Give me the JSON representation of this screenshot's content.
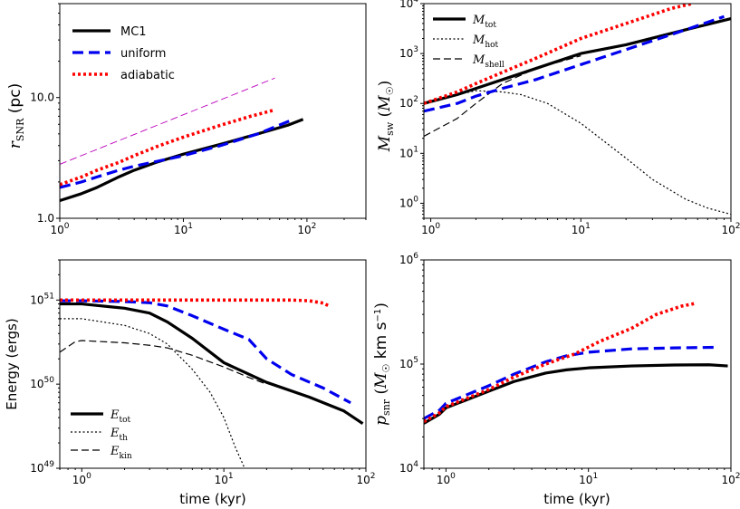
{
  "chart_data": [
    {
      "id": "p1",
      "type": "line",
      "xlabel": "",
      "ylabel": "r_SNR (pc)",
      "xscale": "log",
      "yscale": "log",
      "xlim": [
        1,
        300
      ],
      "ylim": [
        1,
        60
      ],
      "xticks": [
        {
          "v": 1,
          "label": "10^0"
        },
        {
          "v": 10,
          "label": "10^1"
        },
        {
          "v": 100,
          "label": "10^2"
        }
      ],
      "yticks": [
        {
          "v": 1,
          "label": "1.0"
        },
        {
          "v": 10,
          "label": "10.0"
        }
      ],
      "legend_position": "top-left",
      "series": [
        {
          "name": "MC1",
          "color": "#000000",
          "style": "solid",
          "width": 3.2,
          "x": [
            1,
            1.5,
            2,
            3,
            4,
            6,
            10,
            20,
            40,
            70,
            93
          ],
          "y": [
            1.4,
            1.6,
            1.8,
            2.2,
            2.5,
            2.9,
            3.4,
            4.1,
            5.0,
            5.9,
            6.6
          ]
        },
        {
          "name": "uniform",
          "color": "#0000ee",
          "style": "dashed",
          "width": 3.2,
          "x": [
            1,
            1.5,
            2,
            3,
            4,
            6,
            10,
            20,
            40,
            75
          ],
          "y": [
            1.8,
            2.0,
            2.2,
            2.5,
            2.7,
            2.95,
            3.3,
            4.0,
            5.0,
            6.5
          ]
        },
        {
          "name": "adiabatic",
          "color": "#ff0000",
          "style": "dotted",
          "width": 3.6,
          "x": [
            1,
            1.5,
            2,
            3,
            4,
            6,
            10,
            20,
            35,
            55
          ],
          "y": [
            1.9,
            2.2,
            2.5,
            2.9,
            3.3,
            3.9,
            4.7,
            5.9,
            7.0,
            7.9
          ]
        },
        {
          "name": "",
          "color": "#bb00bb",
          "style": "dashed-thin",
          "width": 0.9,
          "x": [
            1,
            55
          ],
          "y": [
            2.8,
            14.5
          ]
        }
      ]
    },
    {
      "id": "p2",
      "type": "line",
      "xlabel": "",
      "ylabel": "M_sw (M☉)",
      "xscale": "log",
      "yscale": "log",
      "xlim": [
        0.9,
        100
      ],
      "ylim": [
        0.5,
        10000
      ],
      "xticks": [
        {
          "v": 1,
          "label": "10^0"
        },
        {
          "v": 10,
          "label": "10^1"
        },
        {
          "v": 100,
          "label": "10^2"
        }
      ],
      "yticks": [
        {
          "v": 1,
          "label": "10^0"
        },
        {
          "v": 10,
          "label": "10^1"
        },
        {
          "v": 100,
          "label": "10^2"
        },
        {
          "v": 1000,
          "label": "10^3"
        },
        {
          "v": 10000,
          "label": "10^4"
        }
      ],
      "legend_position": "top-left",
      "legend": [
        {
          "label": "M",
          "sub": "tot",
          "style": "solid"
        },
        {
          "label": "M",
          "sub": "hot",
          "style": "dotted"
        },
        {
          "label": "M",
          "sub": "shell",
          "style": "dashed"
        }
      ],
      "series": [
        {
          "name": "MC1 tot",
          "color": "#000000",
          "style": "solid",
          "width": 3.2,
          "x": [
            0.9,
            1.5,
            2,
            3,
            5,
            10,
            20,
            50,
            100
          ],
          "y": [
            100,
            150,
            200,
            300,
            500,
            1000,
            1500,
            3000,
            5000
          ]
        },
        {
          "name": "MC1 hot",
          "color": "#000000",
          "style": "dotted-thin",
          "width": 1.2,
          "x": [
            0.9,
            1.5,
            2,
            3,
            4,
            6,
            10,
            20,
            30,
            50,
            70,
            100
          ],
          "y": [
            100,
            150,
            180,
            170,
            150,
            100,
            40,
            8,
            3,
            1.2,
            0.8,
            0.6
          ]
        },
        {
          "name": "MC1 shell",
          "color": "#000000",
          "style": "dashed-thin",
          "width": 1.2,
          "x": [
            0.9,
            1.5,
            2,
            3,
            5,
            10
          ],
          "y": [
            22,
            50,
            100,
            250,
            500,
            900
          ]
        },
        {
          "name": "uniform",
          "color": "#0000ee",
          "style": "dashed",
          "width": 3.2,
          "x": [
            0.9,
            1.5,
            2,
            3,
            5,
            10,
            20,
            50,
            90
          ],
          "y": [
            70,
            100,
            140,
            200,
            300,
            600,
            1200,
            3000,
            5500
          ]
        },
        {
          "name": "adiabatic",
          "color": "#ff0000",
          "style": "dotted",
          "width": 3.6,
          "x": [
            0.9,
            1.5,
            2,
            3,
            5,
            10,
            20,
            40,
            55
          ],
          "y": [
            100,
            170,
            250,
            420,
            800,
            2000,
            4000,
            8000,
            10000
          ]
        }
      ]
    },
    {
      "id": "p3",
      "type": "line",
      "xlabel": "time (kyr)",
      "ylabel": "Energy (ergs)",
      "xscale": "log",
      "yscale": "log",
      "xlim": [
        0.7,
        100
      ],
      "ylim": [
        1e+49,
        3e+51
      ],
      "xticks": [
        {
          "v": 1,
          "label": "10^0"
        },
        {
          "v": 10,
          "label": "10^1"
        },
        {
          "v": 100,
          "label": "10^2"
        }
      ],
      "yticks": [
        {
          "v": 1e+49,
          "label": "10^49"
        },
        {
          "v": 1e+50,
          "label": "10^50"
        },
        {
          "v": 1e+51,
          "label": "10^51"
        }
      ],
      "legend_position": "bottom-left",
      "legend": [
        {
          "label": "E",
          "sub": "tot",
          "style": "solid"
        },
        {
          "label": "E",
          "sub": "th",
          "style": "dotted"
        },
        {
          "label": "E",
          "sub": "kin",
          "style": "dashed"
        }
      ],
      "series": [
        {
          "name": "MC1 tot",
          "color": "#000000",
          "style": "solid",
          "width": 3.2,
          "x": [
            0.7,
            1,
            2,
            3,
            4,
            6,
            10,
            20,
            40,
            70,
            95
          ],
          "y": [
            9e+50,
            9e+50,
            8e+50,
            7e+50,
            5.5e+50,
            3.5e+50,
            1.8e+50,
            1.05e+50,
            7e+49,
            4.8e+49,
            3.4e+49
          ]
        },
        {
          "name": "MC1 th",
          "color": "#000000",
          "style": "dotted-thin",
          "width": 1.2,
          "x": [
            0.7,
            1,
            2,
            3,
            4,
            6,
            8,
            10,
            12,
            14
          ],
          "y": [
            6e+50,
            6e+50,
            5e+50,
            4e+50,
            3e+50,
            1.5e+50,
            8e+49,
            4e+49,
            1.8e+49,
            1e+49
          ]
        },
        {
          "name": "MC1 kin",
          "color": "#000000",
          "style": "dashed-thin",
          "width": 1.2,
          "x": [
            0.7,
            0.9,
            1,
            2,
            3,
            4,
            6,
            10,
            15,
            20
          ],
          "y": [
            2.4e+50,
            3.2e+50,
            3.3e+50,
            3.1e+50,
            2.9e+50,
            2.7e+50,
            2.2e+50,
            1.6e+50,
            1.2e+50,
            1e+50
          ]
        },
        {
          "name": "uniform",
          "color": "#0000ee",
          "style": "dashed",
          "width": 3.2,
          "x": [
            0.7,
            1,
            2,
            3,
            4,
            6,
            10,
            15,
            20,
            30,
            50,
            78
          ],
          "y": [
            9.8e+50,
            9.8e+50,
            9.6e+50,
            9.3e+50,
            8.5e+50,
            6.5e+50,
            4.5e+50,
            3.4e+50,
            2e+50,
            1.3e+50,
            9e+49,
            6e+49
          ]
        },
        {
          "name": "adiabatic",
          "color": "#ff0000",
          "style": "dotted",
          "width": 3.6,
          "x": [
            0.7,
            1,
            2,
            5,
            10,
            20,
            30,
            40,
            50,
            55
          ],
          "y": [
            1e+51,
            1e+51,
            1e+51,
            1e+51,
            1e+51,
            1e+51,
            1e+51,
            9.8e+50,
            9.2e+50,
            8.5e+50
          ]
        }
      ]
    },
    {
      "id": "p4",
      "type": "line",
      "xlabel": "time (kyr)",
      "ylabel": "p_snr (M☉ km s⁻¹)",
      "xscale": "log",
      "yscale": "log",
      "xlim": [
        0.7,
        100
      ],
      "ylim": [
        10000.0,
        1000000.0
      ],
      "xticks": [
        {
          "v": 1,
          "label": "10^0"
        },
        {
          "v": 10,
          "label": "10^1"
        },
        {
          "v": 100,
          "label": "10^2"
        }
      ],
      "yticks": [
        {
          "v": 10000.0,
          "label": "10^4"
        },
        {
          "v": 100000.0,
          "label": "10^5"
        },
        {
          "v": 1000000.0,
          "label": "10^6"
        }
      ],
      "legend_position": "none",
      "series": [
        {
          "name": "MC1",
          "color": "#000000",
          "style": "solid",
          "width": 3.2,
          "x": [
            0.7,
            0.9,
            1,
            2,
            3,
            5,
            7,
            10,
            20,
            40,
            70,
            95
          ],
          "y": [
            27000,
            33000,
            38000,
            55000,
            68000,
            82000,
            88000,
            92000,
            96000,
            98000,
            98500,
            96000
          ]
        },
        {
          "name": "uniform",
          "color": "#0000ee",
          "style": "dashed",
          "width": 3.2,
          "x": [
            0.7,
            0.9,
            1,
            2,
            3,
            5,
            7,
            10,
            20,
            40,
            80
          ],
          "y": [
            30000,
            36000,
            42000,
            62000,
            80000,
            105000,
            120000,
            130000,
            140000,
            143000,
            145000
          ]
        },
        {
          "name": "adiabatic",
          "color": "#ff0000",
          "style": "dotted",
          "width": 3.6,
          "x": [
            0.7,
            0.9,
            1,
            2,
            3,
            5,
            8,
            12,
            20,
            30,
            45,
            55
          ],
          "y": [
            28000,
            34000,
            39000,
            57000,
            75000,
            100000,
            125000,
            165000,
            220000,
            300000,
            360000,
            380000
          ]
        }
      ]
    }
  ],
  "legend_main": [
    {
      "label": "MC1",
      "style": "solid",
      "color": "#000000"
    },
    {
      "label": "uniform",
      "style": "dashed",
      "color": "#0000ee"
    },
    {
      "label": "adiabatic",
      "style": "dotted",
      "color": "#ff0000"
    }
  ]
}
